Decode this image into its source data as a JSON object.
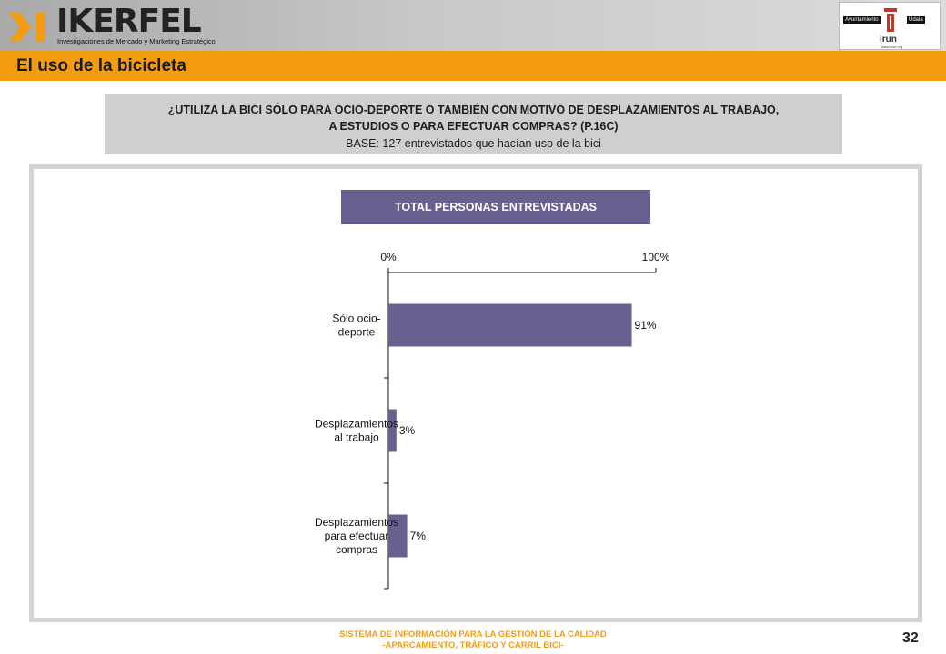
{
  "header": {
    "brand": "IKERFEL",
    "tagline": "Investigaciones de Mercado y Marketing Estratégico",
    "city_logo": {
      "left_label": "Ayuntamiento",
      "right_label": "Udala",
      "town": "irun",
      "url": "www.irun.org"
    }
  },
  "section_title": "El uso de la bicicleta",
  "question": {
    "line1": "¿UTILIZA LA BICI SÓLO PARA OCIO-DEPORTE O TAMBIÉN CON MOTIVO DE DESPLAZAMIENTOS AL TRABAJO,",
    "line2": "A ESTUDIOS O PARA EFECTUAR COMPRAS? (P.16C)",
    "base": "BASE: 127 entrevistados que hacían uso de la bici"
  },
  "chart_header": "TOTAL PERSONAS ENTREVISTADAS",
  "chart_data": {
    "type": "bar",
    "orientation": "horizontal",
    "categories": [
      [
        "Sólo ocio-",
        "deporte"
      ],
      [
        "Desplazamientos",
        "al trabajo"
      ],
      [
        "Desplazamientos",
        "para efectuar",
        "compras"
      ]
    ],
    "values": [
      91,
      3,
      7
    ],
    "value_labels": [
      "91%",
      "3%",
      "7%"
    ],
    "xlim": [
      0,
      100
    ],
    "tick_labels": [
      "0%",
      "100%"
    ],
    "axis_position": "top",
    "grid": false,
    "color": "#676192"
  },
  "footer": {
    "line1": "SISTEMA DE INFORMACIÓN PARA LA GESTIÓN DE LA CALIDAD",
    "line2": "-APARCAMIENTO, TRÁFICO Y CARRIL BICI-",
    "page": "32"
  }
}
